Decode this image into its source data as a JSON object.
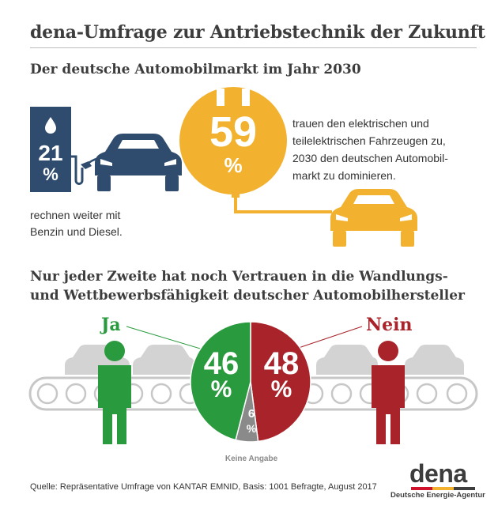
{
  "title": "dena-Umfrage zur Antriebstechnik der Zukunft",
  "section1": {
    "heading": "Der deutsche Automobilmarkt im Jahr 2030",
    "electric": {
      "value": "59",
      "unit": "%",
      "text_lines": [
        "trauen den elektrischen und",
        "teilelektrischen Fahrzeugen zu,",
        "2030 den deutschen Automobil-",
        "markt zu dominieren."
      ]
    },
    "fuel": {
      "value": "21",
      "unit": "%",
      "text_lines": [
        "rechnen weiter mit",
        "Benzin und Diesel."
      ]
    }
  },
  "section2": {
    "heading_lines": [
      "Nur jeder Zweite hat noch Vertrauen in die Wandlungs-",
      "und Wettbewerbsfähigkeit deutscher Automobilhersteller"
    ],
    "yes_label": "Ja",
    "no_label": "Nein",
    "yes": {
      "value": "46",
      "unit": "%"
    },
    "no": {
      "value": "48",
      "unit": "%"
    },
    "none": {
      "value": "6",
      "unit": "%",
      "label": "Keine Angabe"
    }
  },
  "pie_shares": {
    "yes": 46,
    "no": 48,
    "none": 6
  },
  "source": "Quelle: Repräsentative Umfrage von KANTAR EMNID, Basis: 1001 Befragte, August 2017",
  "logo": {
    "name": "dena",
    "subtitle": "Deutsche Energie-Agentur"
  },
  "colors": {
    "navy": "#2f4c6e",
    "yellow": "#f2b230",
    "green": "#2a9a3e",
    "red": "#a8232a",
    "grey": "#8a8a8a",
    "text": "#3d3d3d"
  }
}
